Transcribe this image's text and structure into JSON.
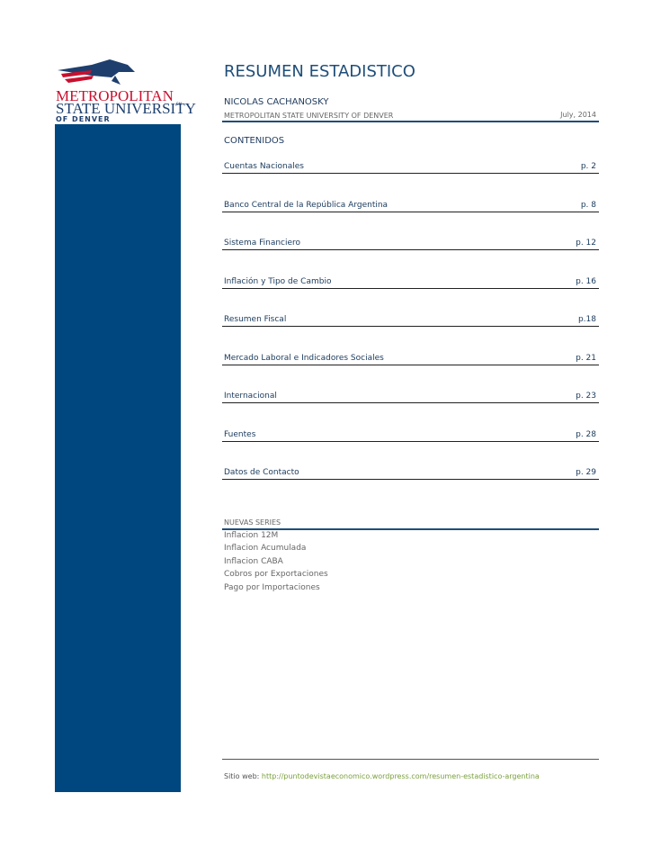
{
  "logo": {
    "line1": "METROPOLITAN",
    "line2": "STATE UNIVERSITY",
    "mark": "SM",
    "line3": "OF DENVER"
  },
  "header": {
    "title": "RESUMEN ESTADISTICO",
    "author": "NICOLAS CACHANOSKY",
    "affiliation": "METROPOLITAN STATE UNIVERSITY OF DENVER",
    "date": "July, 2014"
  },
  "contents": {
    "heading": "CONTENIDOS",
    "items": [
      {
        "label": "Cuentas Nacionales",
        "page": "p. 2"
      },
      {
        "label": "Banco Central de la República Argentina",
        "page": "p. 8"
      },
      {
        "label": "Sistema Financiero",
        "page": "p. 12"
      },
      {
        "label": "Inflación y Tipo de Cambio",
        "page": "p. 16"
      },
      {
        "label": "Resumen Fiscal",
        "page": "p.18"
      },
      {
        "label": "Mercado Laboral e Indicadores Sociales",
        "page": "p. 21"
      },
      {
        "label": "Internacional",
        "page": "p. 23"
      },
      {
        "label": "Fuentes",
        "page": "p. 28"
      },
      {
        "label": "Datos de Contacto",
        "page": "p. 29"
      }
    ]
  },
  "new_series": {
    "heading": "NUEVAS SERIES",
    "items": [
      "Inflacion 12M",
      "Inflacion Acumulada",
      "Inflacion CABA",
      "Cobros por Exportaciones",
      "Pago por Importaciones"
    ]
  },
  "footer": {
    "label": "Sitio web:",
    "url": "http://puntodevistaeconomico.wordpress.com/resumen-estadistico-argentina"
  }
}
